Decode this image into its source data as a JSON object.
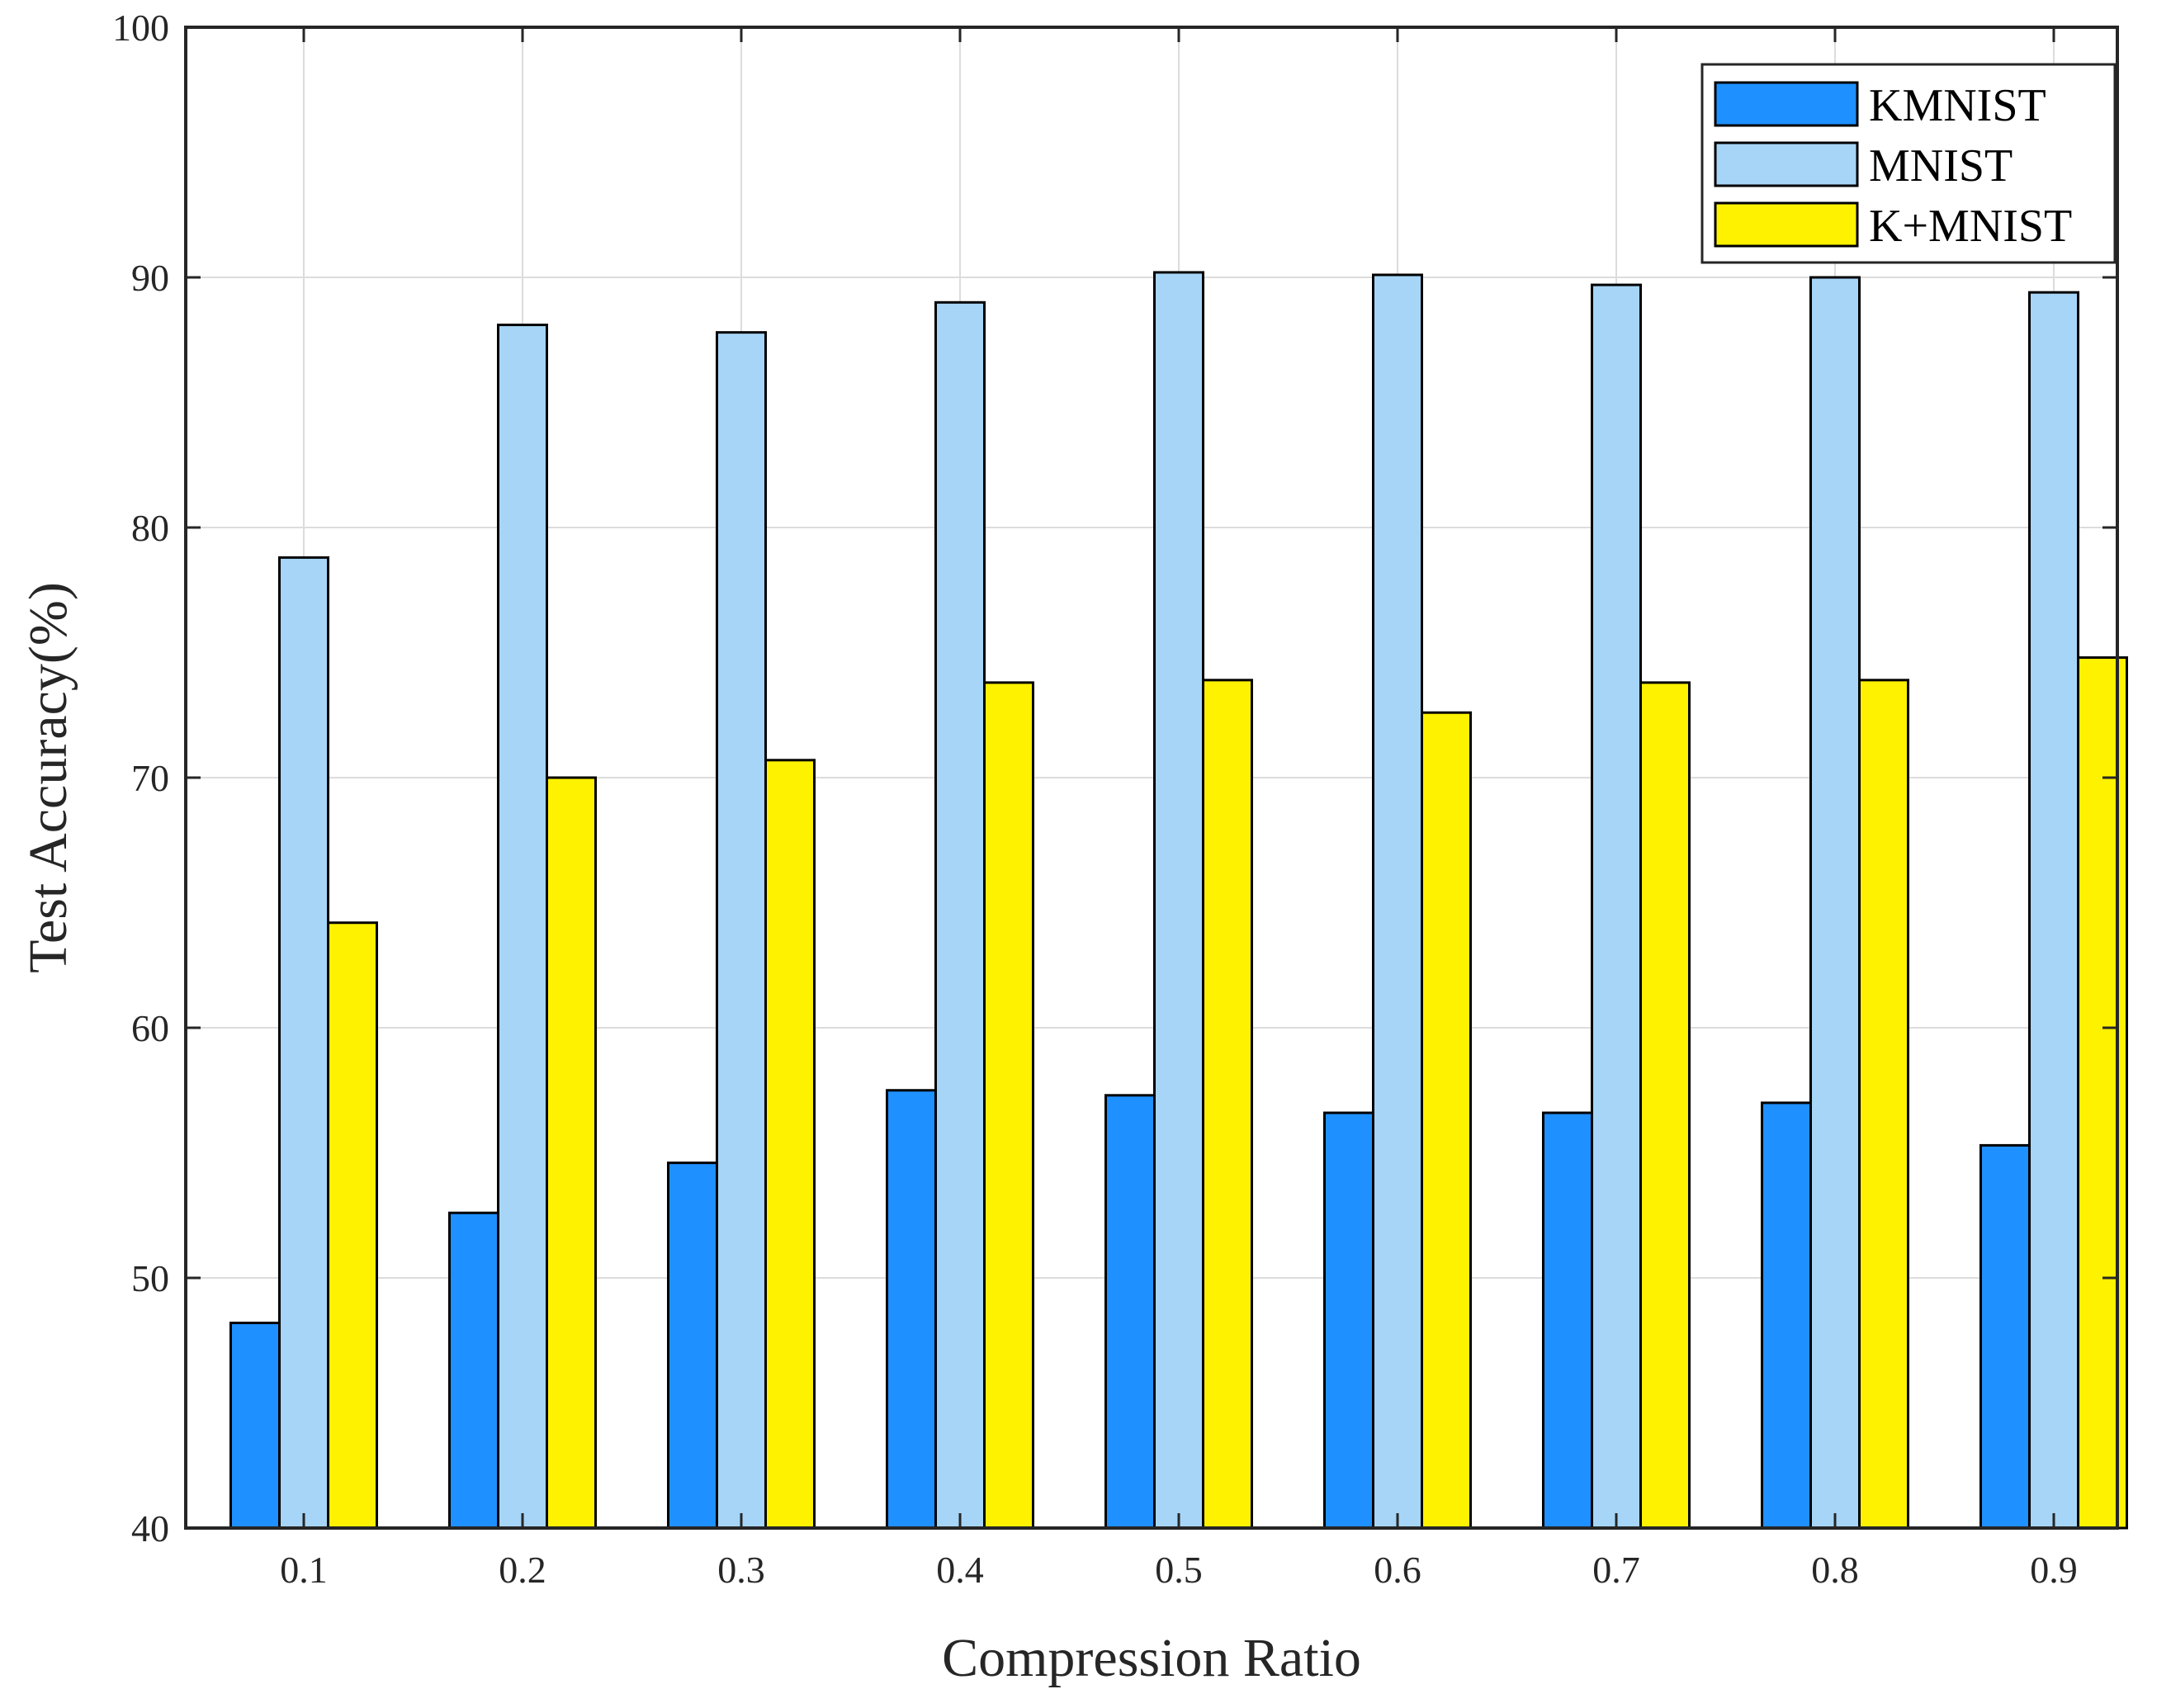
{
  "chart_data": {
    "type": "bar",
    "title": "",
    "xlabel": "Compression Ratio",
    "ylabel": "Test Accuracy(%)",
    "categories": [
      "0.1",
      "0.2",
      "0.3",
      "0.4",
      "0.5",
      "0.6",
      "0.7",
      "0.8",
      "0.9"
    ],
    "ylim": [
      40,
      100
    ],
    "yticks": [
      "40",
      "50",
      "60",
      "70",
      "80",
      "90",
      "100"
    ],
    "grid": true,
    "legend_position": "top-right",
    "series": [
      {
        "name": "KMNIST",
        "color": "#1E90FF",
        "values": [
          48.2,
          52.6,
          54.6,
          57.5,
          57.3,
          56.6,
          56.6,
          57.0,
          55.3
        ]
      },
      {
        "name": "MNIST",
        "color": "#A6D5F7",
        "values": [
          78.8,
          88.1,
          87.8,
          89.0,
          90.2,
          90.1,
          89.7,
          90.0,
          89.4
        ]
      },
      {
        "name": "K+MNIST",
        "color": "#FFF200",
        "values": [
          64.2,
          70.0,
          70.7,
          73.8,
          73.9,
          72.6,
          73.8,
          73.9,
          74.8
        ]
      }
    ]
  }
}
